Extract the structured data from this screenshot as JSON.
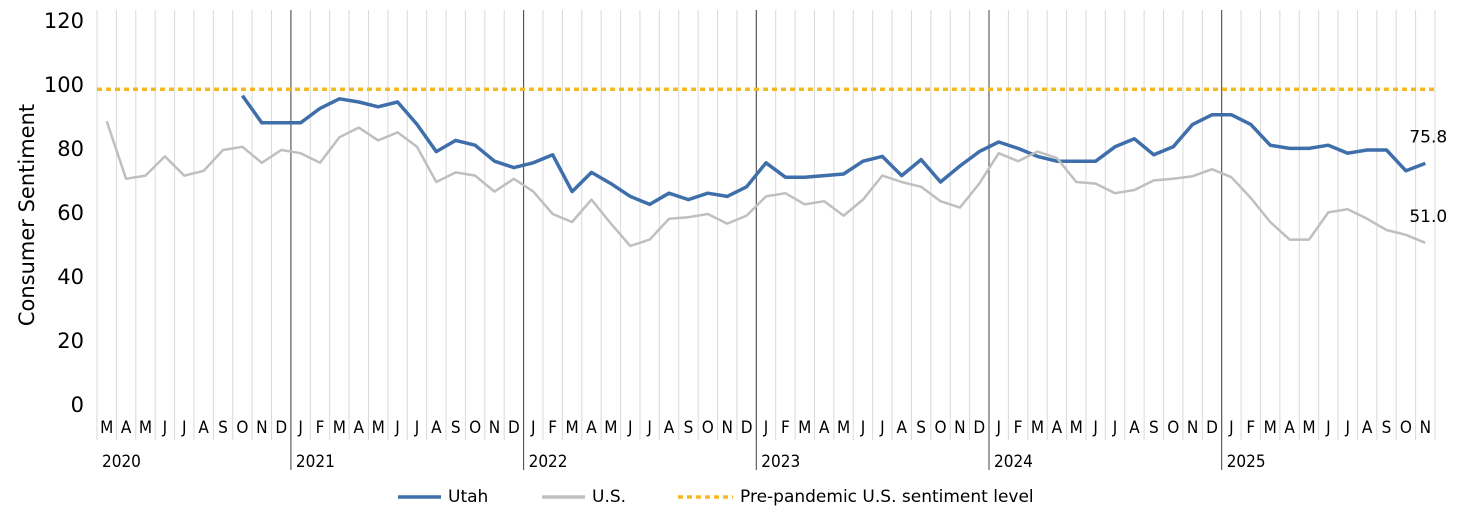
{
  "chart_data": {
    "type": "line",
    "y_label": "Consumer Sentiment",
    "categories": [
      "M",
      "A",
      "M",
      "J",
      "J",
      "A",
      "S",
      "O",
      "N",
      "D",
      "J",
      "F",
      "M",
      "A",
      "M",
      "J",
      "J",
      "A",
      "S",
      "O",
      "N",
      "D",
      "J",
      "F",
      "M",
      "A",
      "M",
      "J",
      "J",
      "A",
      "S",
      "O",
      "N",
      "D",
      "J",
      "F",
      "M",
      "A",
      "M",
      "J",
      "J",
      "A",
      "S",
      "O",
      "N",
      "D",
      "J",
      "F",
      "M",
      "A",
      "M",
      "J",
      "J",
      "A",
      "S",
      "O",
      "N",
      "D",
      "J",
      "F",
      "M",
      "A",
      "M",
      "J",
      "J",
      "A",
      "S",
      "O",
      "N"
    ],
    "groups": [
      {
        "label": "2020",
        "size": 10
      },
      {
        "label": "2021",
        "size": 12
      },
      {
        "label": "2022",
        "size": 12
      },
      {
        "label": "2023",
        "size": 12
      },
      {
        "label": "2024",
        "size": 12
      },
      {
        "label": "2025",
        "size": 11
      }
    ],
    "series": [
      {
        "name": "Utah",
        "color": "#3f6faa",
        "width": 3.5,
        "values": [
          null,
          null,
          null,
          null,
          null,
          null,
          null,
          97,
          88.5,
          88.5,
          88.5,
          93,
          96,
          95,
          93.5,
          95,
          88,
          79.5,
          83,
          81.5,
          76.5,
          74.5,
          76,
          78.5,
          67,
          73,
          69.5,
          65.5,
          63,
          66.5,
          64.5,
          66.5,
          65.5,
          68.5,
          76,
          71.5,
          71.5,
          72,
          72.5,
          76.5,
          78,
          72,
          77,
          70,
          75,
          79.5,
          82.5,
          80.5,
          78,
          76.5,
          76.5,
          76.5,
          81,
          83.5,
          78.5,
          81,
          88,
          91,
          91,
          88,
          81.5,
          80.5,
          80.5,
          81.5,
          79,
          80,
          80,
          73.5,
          75.8
        ],
        "value_labels": [
          null,
          null,
          null,
          null,
          null,
          null,
          null,
          null,
          null,
          null,
          null,
          null,
          null,
          null,
          null,
          null,
          null,
          null,
          null,
          null,
          null,
          null,
          null,
          null,
          null,
          null,
          null,
          null,
          null,
          null,
          null,
          null,
          null,
          null,
          null,
          null,
          null,
          null,
          null,
          null,
          null,
          null,
          null,
          null,
          null,
          null,
          null,
          null,
          null,
          null,
          null,
          null,
          null,
          null,
          null,
          null,
          null,
          null,
          null,
          null,
          null,
          null,
          null,
          null,
          null,
          null,
          null,
          null,
          "75.8"
        ]
      },
      {
        "name": "U.S.",
        "color": "#bfbfbf",
        "width": 2.5,
        "values": [
          89,
          71,
          72,
          78,
          72,
          73.5,
          80,
          81,
          76,
          80,
          79,
          76,
          84,
          87,
          83,
          85.5,
          81,
          70,
          73,
          72,
          67,
          71,
          67,
          60,
          57.5,
          64.5,
          57,
          50,
          52,
          58.5,
          59,
          60,
          57,
          59.5,
          65.5,
          66.5,
          63,
          64,
          59.5,
          64.5,
          72,
          70,
          68.5,
          64,
          62,
          69.5,
          79,
          76.5,
          79.5,
          77.5,
          70,
          69.5,
          66.5,
          67.5,
          70.5,
          71,
          71.8,
          74,
          71.5,
          65,
          57.5,
          52,
          52,
          60.5,
          61.5,
          58.5,
          55,
          53.5,
          51.0
        ],
        "value_labels": [
          null,
          null,
          null,
          null,
          null,
          null,
          null,
          null,
          null,
          null,
          null,
          null,
          null,
          null,
          null,
          null,
          null,
          null,
          null,
          null,
          null,
          null,
          null,
          null,
          null,
          null,
          null,
          null,
          null,
          null,
          null,
          null,
          null,
          null,
          null,
          null,
          null,
          null,
          null,
          null,
          null,
          null,
          null,
          null,
          null,
          null,
          null,
          null,
          null,
          null,
          null,
          null,
          null,
          null,
          null,
          null,
          null,
          null,
          null,
          null,
          null,
          null,
          null,
          null,
          null,
          null,
          null,
          null,
          "51.0"
        ]
      }
    ],
    "reference_line": {
      "label": "Pre-pandemic U.S. sentiment level",
      "value": 99,
      "color": "#f5b821"
    },
    "ylim": [
      0,
      120
    ],
    "yticks": [
      0,
      20,
      40,
      60,
      80,
      100,
      120
    ],
    "grid": true
  }
}
